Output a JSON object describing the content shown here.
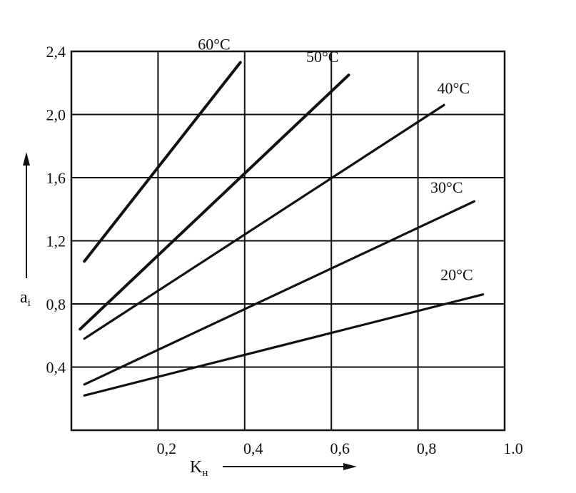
{
  "chart_data": {
    "type": "line",
    "xlabel": "K",
    "xlabel_sub": "н",
    "ylabel": "a",
    "ylabel_sub": "i",
    "xlim": [
      0,
      1.0
    ],
    "ylim": [
      0,
      2.4
    ],
    "x_ticks": [
      {
        "value": 0.2,
        "label": "0,2"
      },
      {
        "value": 0.4,
        "label": "0,4"
      },
      {
        "value": 0.6,
        "label": "0,6"
      },
      {
        "value": 0.8,
        "label": "0,8"
      },
      {
        "value": 1.0,
        "label": "1.0"
      }
    ],
    "y_ticks": [
      {
        "value": 0.4,
        "label": "0,4"
      },
      {
        "value": 0.8,
        "label": "0,8"
      },
      {
        "value": 1.2,
        "label": "1,2"
      },
      {
        "value": 1.6,
        "label": "1,6"
      },
      {
        "value": 2.0,
        "label": "2,0"
      },
      {
        "value": 2.4,
        "label": "2,4"
      }
    ],
    "grid": true,
    "series": [
      {
        "name": "60°C",
        "x": [
          0.03,
          0.39
        ],
        "y": [
          1.07,
          2.33
        ]
      },
      {
        "name": "50°C",
        "x": [
          0.02,
          0.64
        ],
        "y": [
          0.64,
          2.25
        ]
      },
      {
        "name": "40°C",
        "x": [
          0.03,
          0.86
        ],
        "y": [
          0.58,
          2.06
        ]
      },
      {
        "name": "30°C",
        "x": [
          0.03,
          0.93
        ],
        "y": [
          0.29,
          1.45
        ]
      },
      {
        "name": "20°C",
        "x": [
          0.03,
          0.95
        ],
        "y": [
          0.22,
          0.86
        ]
      }
    ]
  }
}
